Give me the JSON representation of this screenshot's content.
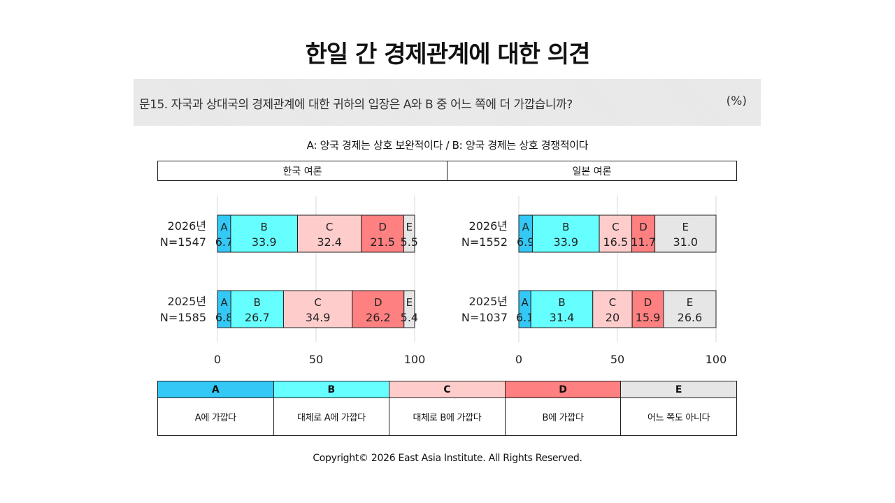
{
  "title": "한일 간 경제관계에 대한 의견",
  "question": {
    "text": "문15. 자국과 상대국의 경제관계에 대한 귀하의 입장은 A와 B 중 어느 쪽에 더 가깝습니까?",
    "unit": "(%)"
  },
  "subtitle": "A: 양국 경제는 상호 보완적이다 / B: 양국 경제는 상호 경쟁적이다",
  "footer": "Copyright© 2026 East Asia Institute. All Rights Reserved.",
  "legend": [
    {
      "key": "A",
      "label": "A에 가깝다",
      "color": "#33c8f5"
    },
    {
      "key": "B",
      "label": "대체로 A에 가깝다",
      "color": "#66ffff"
    },
    {
      "key": "C",
      "label": "대체로 B에 가깝다",
      "color": "#ffcccc"
    },
    {
      "key": "D",
      "label": "B에 가깝다",
      "color": "#ff8080"
    },
    {
      "key": "E",
      "label": "어느 쪽도 아니다",
      "color": "#e6e6e6"
    }
  ],
  "chart_data": [
    {
      "type": "bar",
      "orientation": "horizontal",
      "stacked": true,
      "title": "한국 여론",
      "categories": [
        "A",
        "B",
        "C",
        "D",
        "E"
      ],
      "xlim": [
        0,
        100
      ],
      "xticks": [
        0,
        50,
        100
      ],
      "grid": true,
      "rows": [
        {
          "year": "2026년",
          "n": "N=1547",
          "values": [
            6.7,
            33.9,
            32.4,
            21.5,
            5.5
          ]
        },
        {
          "year": "2025년",
          "n": "N=1585",
          "values": [
            6.8,
            26.7,
            34.9,
            26.2,
            5.4
          ]
        }
      ]
    },
    {
      "type": "bar",
      "orientation": "horizontal",
      "stacked": true,
      "title": "일본 여론",
      "categories": [
        "A",
        "B",
        "C",
        "D",
        "E"
      ],
      "xlim": [
        0,
        100
      ],
      "xticks": [
        0,
        50,
        100
      ],
      "grid": true,
      "rows": [
        {
          "year": "2026년",
          "n": "N=1552",
          "values": [
            6.9,
            33.9,
            16.5,
            11.7,
            31.0
          ]
        },
        {
          "year": "2025년",
          "n": "N=1037",
          "values": [
            6.1,
            31.4,
            20,
            15.9,
            26.6
          ]
        }
      ]
    }
  ]
}
